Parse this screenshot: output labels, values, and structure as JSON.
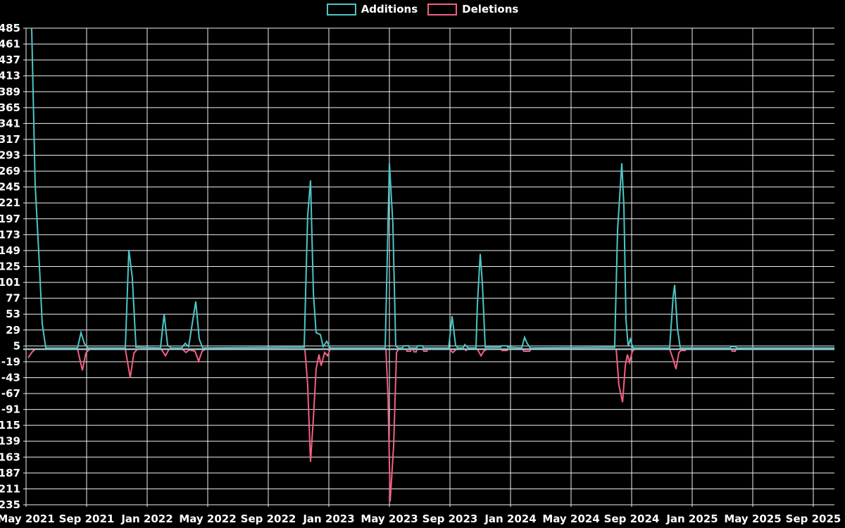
{
  "legend": {
    "additions_label": "Additions",
    "deletions_label": "Deletions"
  },
  "colors": {
    "background": "#000000",
    "grid": "#efefef",
    "zero_line": "#9fbcc5",
    "text": "#ffffff",
    "additions": "#4dc6c5",
    "deletions": "#f2607f"
  },
  "chart_data": {
    "type": "line",
    "title": "",
    "xlabel": "",
    "ylabel": "",
    "grid": true,
    "legend_position": "top-center",
    "x_axis": {
      "unit": "months since May 2021",
      "tick_months": [
        0,
        4,
        8,
        12,
        16,
        20,
        24,
        28,
        32,
        36,
        40,
        44,
        48,
        52
      ],
      "tick_labels": [
        "May 2021",
        "Sep 2021",
        "Jan 2022",
        "May 2022",
        "Sep 2022",
        "Jan 2023",
        "May 2023",
        "Sep 2023",
        "Jan 2024",
        "May 2024",
        "Sep 2024",
        "Jan 2025",
        "May 2025",
        "Sep 2025"
      ]
    },
    "y_axis": {
      "min": -235,
      "max": 485,
      "tick_step": 24,
      "ticks": [
        485,
        461,
        437,
        413,
        389,
        365,
        341,
        317,
        293,
        269,
        245,
        221,
        197,
        173,
        149,
        125,
        101,
        77,
        53,
        29,
        5,
        -19,
        -43,
        -67,
        -91,
        -115,
        -139,
        -163,
        -187,
        -211,
        -235
      ]
    },
    "series": [
      {
        "name": "Additions",
        "color": "#4dc6c5",
        "points": [
          [
            0.37,
            485
          ],
          [
            0.6,
            250
          ],
          [
            0.84,
            145
          ],
          [
            1.07,
            38
          ],
          [
            1.3,
            2
          ],
          [
            3.4,
            2
          ],
          [
            3.63,
            25
          ],
          [
            3.86,
            8
          ],
          [
            4.09,
            2
          ],
          [
            6.56,
            2
          ],
          [
            6.79,
            150
          ],
          [
            7.02,
            108
          ],
          [
            7.26,
            3
          ],
          [
            8.88,
            2
          ],
          [
            9.12,
            53
          ],
          [
            9.35,
            6
          ],
          [
            9.58,
            2
          ],
          [
            10.28,
            2
          ],
          [
            10.51,
            9
          ],
          [
            10.74,
            4
          ],
          [
            11.21,
            72
          ],
          [
            11.44,
            15
          ],
          [
            11.67,
            2
          ],
          [
            18.37,
            3
          ],
          [
            18.6,
            201
          ],
          [
            18.79,
            255
          ],
          [
            18.98,
            84
          ],
          [
            19.16,
            25
          ],
          [
            19.44,
            22
          ],
          [
            19.63,
            4
          ],
          [
            19.86,
            12
          ],
          [
            20.09,
            2
          ],
          [
            23.72,
            2
          ],
          [
            23.86,
            140
          ],
          [
            24.0,
            281
          ],
          [
            24.23,
            190
          ],
          [
            24.42,
            5
          ],
          [
            24.56,
            2
          ],
          [
            24.88,
            2
          ],
          [
            24.93,
            5
          ],
          [
            25.26,
            5
          ],
          [
            25.31,
            2
          ],
          [
            25.81,
            2
          ],
          [
            25.86,
            5
          ],
          [
            26.19,
            5
          ],
          [
            26.24,
            2
          ],
          [
            27.91,
            2
          ],
          [
            28.14,
            50
          ],
          [
            28.37,
            6
          ],
          [
            28.51,
            2
          ],
          [
            28.88,
            2
          ],
          [
            28.98,
            7
          ],
          [
            29.21,
            2
          ],
          [
            29.72,
            2
          ],
          [
            29.81,
            67
          ],
          [
            30.0,
            144
          ],
          [
            30.14,
            100
          ],
          [
            30.33,
            3
          ],
          [
            31.35,
            3
          ],
          [
            31.4,
            5
          ],
          [
            31.77,
            5
          ],
          [
            31.82,
            3
          ],
          [
            32.74,
            2
          ],
          [
            32.93,
            18
          ],
          [
            33.07,
            10
          ],
          [
            33.3,
            2
          ],
          [
            38.88,
            3
          ],
          [
            39.07,
            179
          ],
          [
            39.35,
            281
          ],
          [
            39.49,
            216
          ],
          [
            39.63,
            44
          ],
          [
            39.77,
            4
          ],
          [
            39.91,
            15
          ],
          [
            40.09,
            2
          ],
          [
            42.51,
            2
          ],
          [
            42.74,
            79
          ],
          [
            42.84,
            97
          ],
          [
            43.02,
            33
          ],
          [
            43.21,
            2
          ],
          [
            46.51,
            2
          ],
          [
            46.56,
            4
          ],
          [
            46.88,
            4
          ],
          [
            46.93,
            2
          ],
          [
            53.4,
            2
          ]
        ]
      },
      {
        "name": "Deletions",
        "color": "#f2607f",
        "points": [
          [
            0.14,
            -13
          ],
          [
            0.37,
            -5
          ],
          [
            0.6,
            0
          ],
          [
            3.4,
            0
          ],
          [
            3.72,
            -32
          ],
          [
            3.95,
            -6
          ],
          [
            4.19,
            0
          ],
          [
            6.56,
            0
          ],
          [
            6.88,
            -43
          ],
          [
            7.12,
            -6
          ],
          [
            7.35,
            0
          ],
          [
            8.93,
            0
          ],
          [
            9.21,
            -10
          ],
          [
            9.44,
            0
          ],
          [
            10.33,
            0
          ],
          [
            10.56,
            -5
          ],
          [
            10.79,
            -1
          ],
          [
            11.16,
            -3
          ],
          [
            11.4,
            -18
          ],
          [
            11.63,
            -3
          ],
          [
            11.86,
            0
          ],
          [
            18.42,
            0
          ],
          [
            18.6,
            -54
          ],
          [
            18.79,
            -170
          ],
          [
            18.98,
            -103
          ],
          [
            19.16,
            -30
          ],
          [
            19.35,
            -8
          ],
          [
            19.49,
            -25
          ],
          [
            19.72,
            -5
          ],
          [
            19.91,
            -10
          ],
          [
            20.09,
            0
          ],
          [
            23.77,
            0
          ],
          [
            23.91,
            -73
          ],
          [
            24.05,
            -230
          ],
          [
            24.28,
            -146
          ],
          [
            24.47,
            -5
          ],
          [
            24.6,
            0
          ],
          [
            25.12,
            0
          ],
          [
            25.16,
            -3
          ],
          [
            25.4,
            -3
          ],
          [
            25.44,
            0
          ],
          [
            25.58,
            0
          ],
          [
            25.63,
            -4
          ],
          [
            25.77,
            -4
          ],
          [
            25.81,
            0
          ],
          [
            26.23,
            0
          ],
          [
            26.28,
            -3
          ],
          [
            26.47,
            -3
          ],
          [
            26.51,
            0
          ],
          [
            27.95,
            0
          ],
          [
            28.19,
            -5
          ],
          [
            28.42,
            0
          ],
          [
            29.0,
            0
          ],
          [
            29.05,
            -2
          ],
          [
            29.16,
            0
          ],
          [
            29.81,
            0
          ],
          [
            30.05,
            -10
          ],
          [
            30.23,
            -3
          ],
          [
            30.42,
            0
          ],
          [
            31.4,
            0
          ],
          [
            31.44,
            -2
          ],
          [
            31.77,
            -2
          ],
          [
            31.81,
            0
          ],
          [
            32.79,
            0
          ],
          [
            32.88,
            -3
          ],
          [
            33.26,
            -3
          ],
          [
            33.35,
            0
          ],
          [
            38.98,
            0
          ],
          [
            39.16,
            -54
          ],
          [
            39.4,
            -80
          ],
          [
            39.58,
            -25
          ],
          [
            39.72,
            -8
          ],
          [
            39.86,
            -20
          ],
          [
            40.05,
            -3
          ],
          [
            40.19,
            0
          ],
          [
            42.51,
            0
          ],
          [
            42.74,
            -15
          ],
          [
            42.93,
            -30
          ],
          [
            43.12,
            -5
          ],
          [
            43.26,
            -2
          ],
          [
            43.53,
            -2
          ],
          [
            43.58,
            0
          ],
          [
            46.6,
            0
          ],
          [
            46.65,
            -3
          ],
          [
            46.84,
            -3
          ],
          [
            46.88,
            0
          ],
          [
            53.4,
            0
          ]
        ]
      }
    ]
  }
}
